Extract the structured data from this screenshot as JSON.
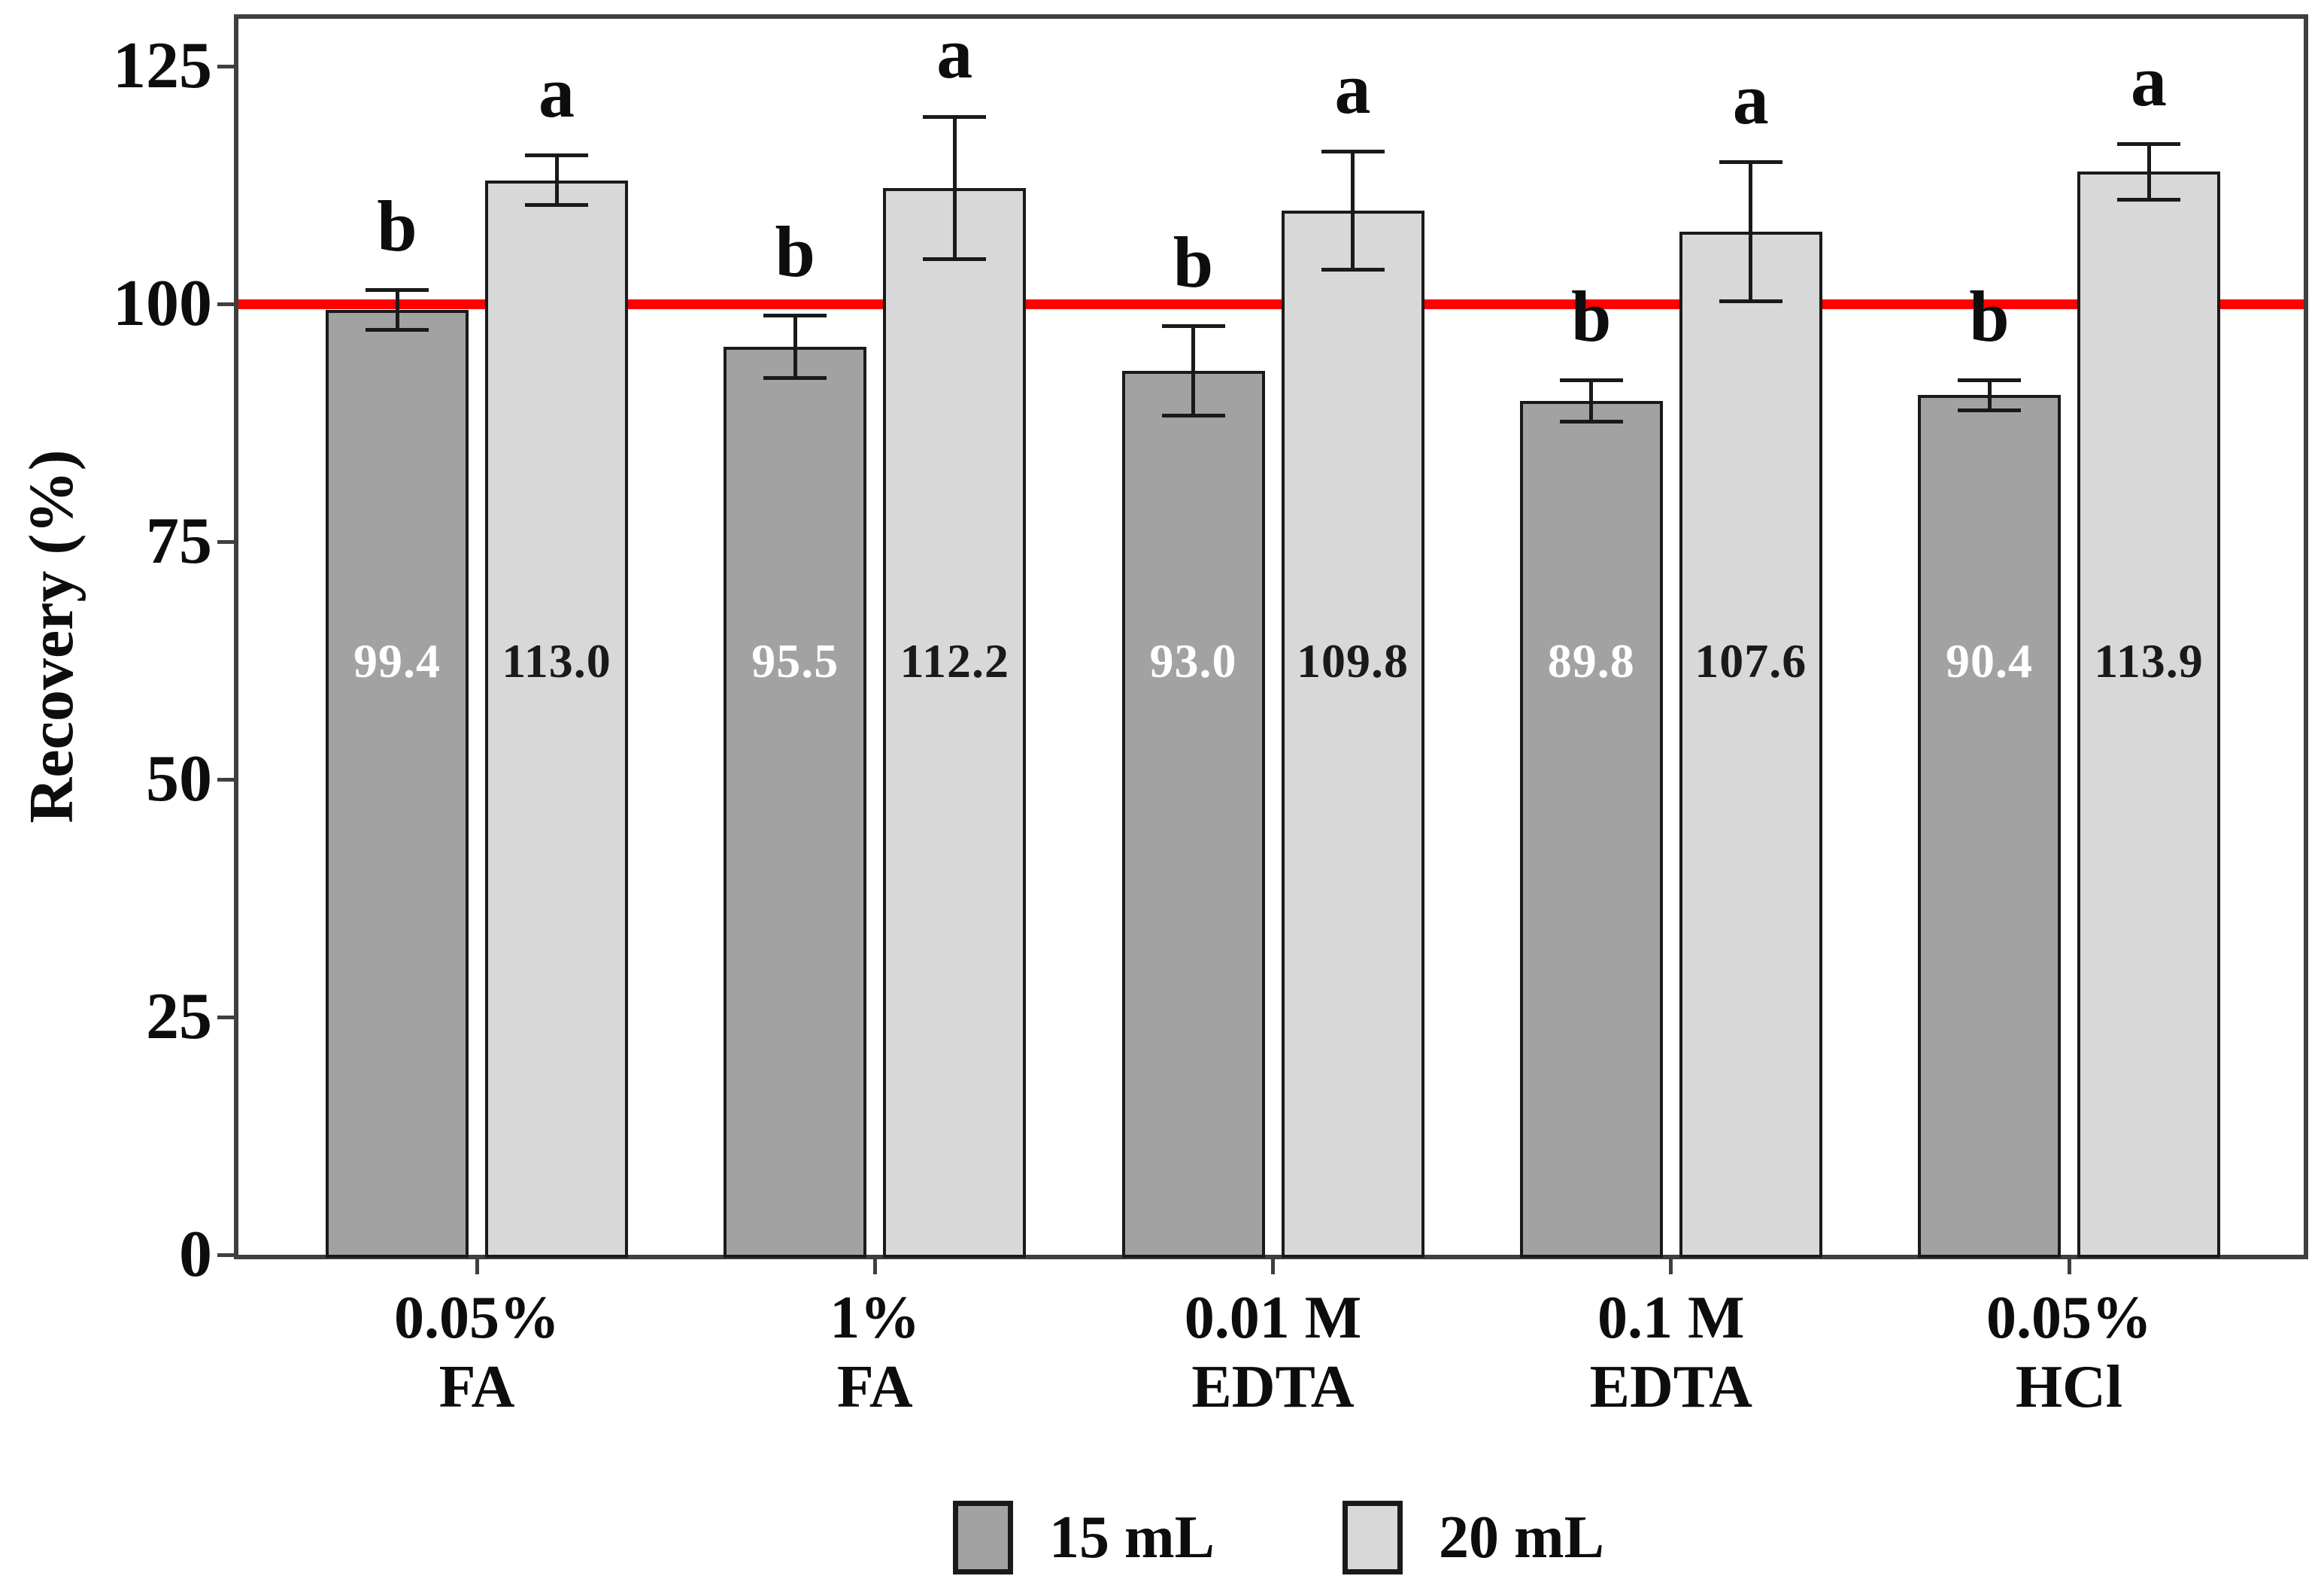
{
  "figure": {
    "background": "#ffffff",
    "plot_border_color": "#3f3f3f",
    "bar_border_color": "#1a1a1a",
    "error_bar_color": "#1a1a1a"
  },
  "y_axis": {
    "label": "Recovery (%)",
    "ticks": [
      "0",
      "25",
      "50",
      "75",
      "100",
      "125"
    ],
    "tick_values": [
      0,
      25,
      50,
      75,
      100,
      125
    ],
    "max": 130
  },
  "reference_line": {
    "value": 100,
    "color": "#ff0000"
  },
  "chart_data": {
    "type": "bar",
    "title": "",
    "xlabel": "",
    "ylabel": "Recovery (%)",
    "ylim": [
      0,
      130
    ],
    "grid": false,
    "legend_position": "bottom",
    "reference_line_y": 100,
    "categories": [
      [
        "0.05%",
        "FA"
      ],
      [
        "1%",
        "FA"
      ],
      [
        "0.01 M",
        "EDTA"
      ],
      [
        "0.1 M",
        "EDTA"
      ],
      [
        "0.05%",
        "HCl"
      ]
    ],
    "series": [
      {
        "name": "15 mL",
        "color": "#a2a2a2",
        "value_label_color": "#ffffff",
        "sig_letter": "b",
        "values": [
          99.4,
          95.5,
          93.0,
          89.8,
          90.4
        ],
        "errors": [
          2.1,
          3.3,
          4.7,
          2.2,
          1.6
        ]
      },
      {
        "name": "20 mL",
        "color": "#d8d8d8",
        "value_label_color": "#1a1a1a",
        "sig_letter": "a",
        "values": [
          113.0,
          112.2,
          109.8,
          107.6,
          113.9
        ],
        "errors": [
          2.6,
          7.5,
          6.2,
          7.3,
          2.9
        ]
      }
    ]
  }
}
